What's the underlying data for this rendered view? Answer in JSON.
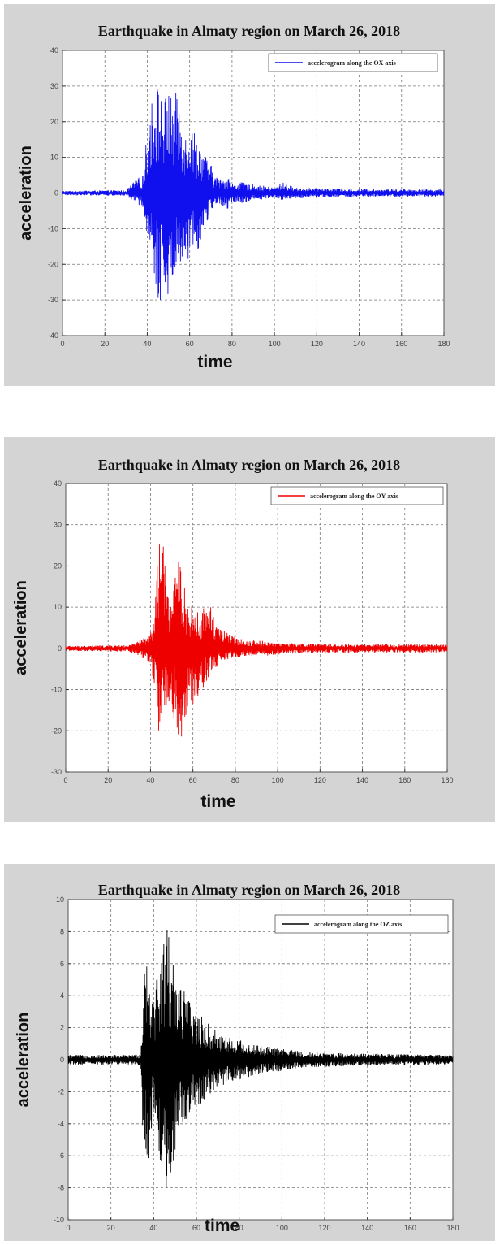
{
  "chart_data": [
    {
      "type": "line",
      "title": "Earthquake in Almaty region on March 26, 2018",
      "xlabel": "time",
      "ylabel": "acceleration",
      "xlim": [
        0,
        180
      ],
      "ylim": [
        -40,
        40
      ],
      "xticks": [
        0,
        20,
        40,
        60,
        80,
        100,
        120,
        140,
        160,
        180
      ],
      "yticks": [
        40,
        30,
        20,
        10,
        0,
        -10,
        -20,
        -30,
        -40
      ],
      "grid": true,
      "legend_position": "top-right",
      "color": "#1010ee",
      "series": [
        {
          "name": "accelerogram along the OX axis",
          "envelope": {
            "t": [
              0,
              30,
              35,
              38,
              40,
              42,
              44,
              46,
              48,
              50,
              52,
              54,
              56,
              58,
              60,
              62,
              64,
              66,
              68,
              70,
              72,
              74,
              76,
              78,
              80,
              84,
              90,
              100,
              104,
              110,
              130,
              150,
              180
            ],
            "max": [
              0.6,
              0.8,
              4,
              5,
              18,
              26,
              32,
              29,
              26,
              30,
              25,
              29,
              24,
              17,
              20,
              18,
              15,
              12,
              10,
              8,
              5,
              4,
              4,
              5,
              2.5,
              3,
              2.5,
              1.5,
              3,
              1.5,
              1.2,
              1.1,
              1
            ],
            "min": [
              -0.6,
              -0.8,
              -3,
              -4,
              -12,
              -22,
              -30,
              -31,
              -24,
              -31,
              -25,
              -18,
              -22,
              -17,
              -21,
              -13,
              -16,
              -11,
              -9,
              -5,
              -4,
              -3,
              -4,
              -5,
              -2.5,
              -3,
              -2,
              -1.5,
              -2,
              -1.5,
              -1.2,
              -1.1,
              -1
            ]
          }
        }
      ]
    },
    {
      "type": "line",
      "title": "Earthquake in Almaty region on March 26, 2018",
      "xlabel": "time",
      "ylabel": "acceleration",
      "xlim": [
        0,
        180
      ],
      "ylim": [
        -30,
        40
      ],
      "xticks": [
        0,
        20,
        40,
        60,
        80,
        100,
        120,
        140,
        160,
        180
      ],
      "yticks": [
        40,
        30,
        20,
        10,
        0,
        -10,
        -20,
        -30
      ],
      "grid": true,
      "legend_position": "top-right",
      "color": "#ee0000",
      "series": [
        {
          "name": "accelerogram along the OY axis",
          "envelope": {
            "t": [
              0,
              30,
              35,
              38,
              40,
              42,
              44,
              46,
              48,
              50,
              52,
              54,
              56,
              58,
              60,
              62,
              64,
              66,
              68,
              70,
              72,
              74,
              76,
              78,
              80,
              84,
              90,
              100,
              110,
              130,
              150,
              180
            ],
            "max": [
              0.6,
              0.8,
              2,
              3,
              4,
              8,
              30,
              25,
              15,
              14,
              18,
              23,
              15,
              11,
              10,
              9,
              8,
              12,
              11,
              8,
              6,
              5,
              4,
              3,
              3,
              2,
              2,
              1.5,
              1.2,
              1,
              1,
              1
            ],
            "min": [
              -0.6,
              -0.8,
              -2,
              -3,
              -4,
              -10,
              -23,
              -20,
              -12,
              -16,
              -19,
              -28,
              -18,
              -13,
              -14,
              -12,
              -10,
              -9,
              -7,
              -5,
              -4,
              -3,
              -3,
              -2.5,
              -2.5,
              -2,
              -2,
              -1.5,
              -1.2,
              -1,
              -1,
              -1
            ]
          }
        }
      ]
    },
    {
      "type": "line",
      "title": "Earthquake in Almaty region on March 26, 2018",
      "xlabel": "time",
      "ylabel": "acceleration",
      "xlim": [
        0,
        180
      ],
      "ylim": [
        -10,
        10
      ],
      "xticks": [
        0,
        20,
        40,
        60,
        80,
        100,
        120,
        140,
        160,
        180
      ],
      "yticks": [
        10,
        8,
        6,
        4,
        2,
        0,
        -2,
        -4,
        -6,
        -8,
        -10
      ],
      "grid": true,
      "legend_position": "top-right",
      "color": "#000000",
      "series": [
        {
          "name": "accelerogram along the OZ axis",
          "envelope": {
            "t": [
              0,
              30,
              34,
              35,
              36,
              38,
              40,
              42,
              44,
              46,
              48,
              50,
              52,
              54,
              56,
              58,
              60,
              62,
              64,
              66,
              68,
              70,
              74,
              78,
              82,
              86,
              90,
              95,
              100,
              110,
              130,
              150,
              180
            ],
            "max": [
              0.3,
              0.3,
              0.4,
              4,
              7.5,
              6,
              4,
              6,
              7,
              9,
              7,
              6,
              5,
              4.5,
              4,
              3.5,
              3,
              2.8,
              2.5,
              2.2,
              2,
              1.8,
              1.5,
              1.3,
              1.2,
              1,
              0.9,
              0.8,
              0.7,
              0.5,
              0.4,
              0.35,
              0.3
            ],
            "min": [
              -0.3,
              -0.3,
              -0.4,
              -5,
              -6.5,
              -6,
              -3,
              -5,
              -8,
              -9,
              -7,
              -6,
              -5,
              -4.5,
              -4,
              -3.5,
              -3,
              -2.8,
              -2.5,
              -2.2,
              -2,
              -1.8,
              -1.5,
              -1.3,
              -1.2,
              -1,
              -0.9,
              -0.8,
              -0.7,
              -0.5,
              -0.4,
              -0.35,
              -0.3
            ]
          }
        }
      ]
    }
  ]
}
